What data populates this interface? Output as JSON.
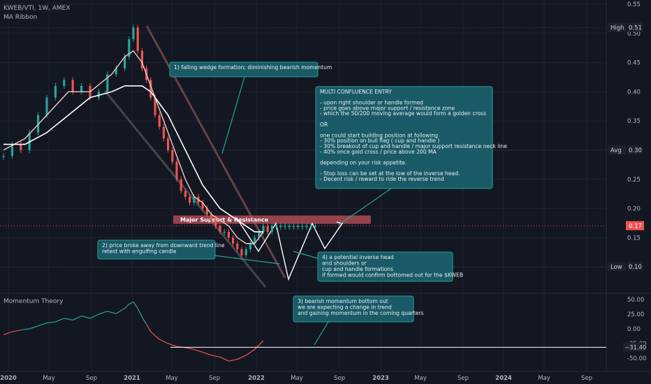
{
  "header": {
    "symbol": "KWEB/VTI, 1W, AMEX",
    "indicator1": "MA Ribbon",
    "indicator2": "Momentum Theory"
  },
  "colors": {
    "background": "#131722",
    "grid": "#1f2330",
    "text": "#b2b5be",
    "price_up": "#26a69a",
    "price_down": "#ef5350",
    "ma_fast": "#f4c7c3",
    "ma_slow": "#ffffff",
    "annotation_fill": "#1b5e6b",
    "annotation_border": "#26a69a",
    "zone": "#ad4a55",
    "momentum_up": "#26a69a",
    "momentum_down": "#ef5350"
  },
  "chart_data": [
    {
      "type": "candlestick",
      "name": "price",
      "x_ticks": [
        "2020",
        "May",
        "Sep",
        "2021",
        "May",
        "Sep",
        "2022",
        "May",
        "Sep",
        "2023",
        "May",
        "Sep",
        "2024",
        "May",
        "Sep"
      ],
      "y_ticks": [
        "0.55",
        "0.50",
        "0.45",
        "0.40",
        "0.35",
        "0.30",
        "0.25",
        "0.20",
        "0.15",
        "0.10"
      ],
      "ylim": [
        0.07,
        0.55
      ],
      "series": [
        {
          "name": "price",
          "x": [
            0,
            4,
            8,
            12,
            16,
            20,
            24,
            28,
            32,
            36,
            40,
            44,
            48,
            52,
            56,
            58,
            60,
            62,
            64,
            66,
            68,
            70,
            72,
            74,
            76,
            78,
            80,
            82,
            84,
            86,
            88,
            90,
            92,
            94,
            96,
            98,
            100,
            102,
            104,
            106,
            108,
            110,
            112,
            114,
            116,
            118,
            120,
            122,
            124,
            126,
            128,
            130,
            132,
            134,
            136,
            138,
            140,
            142,
            144
          ],
          "values": [
            0.29,
            0.31,
            0.3,
            0.33,
            0.36,
            0.39,
            0.41,
            0.42,
            0.4,
            0.41,
            0.39,
            0.4,
            0.43,
            0.44,
            0.46,
            0.49,
            0.51,
            0.47,
            0.44,
            0.42,
            0.39,
            0.36,
            0.34,
            0.32,
            0.3,
            0.28,
            0.25,
            0.23,
            0.22,
            0.21,
            0.22,
            0.21,
            0.2,
            0.19,
            0.18,
            0.17,
            0.16,
            0.16,
            0.15,
            0.14,
            0.13,
            0.12,
            0.13,
            0.14,
            0.15,
            0.16,
            0.17,
            0.16,
            0.17,
            0.17,
            0.17,
            0.17,
            0.17,
            0.17,
            0.17,
            0.17,
            0.17,
            0.17,
            0.17
          ]
        },
        {
          "name": "MA fast",
          "x": [
            0,
            10,
            20,
            30,
            40,
            50,
            56,
            60,
            64,
            68,
            72,
            76,
            80,
            84,
            88,
            92,
            96,
            100,
            104,
            108,
            112,
            116,
            120
          ],
          "values": [
            0.3,
            0.32,
            0.36,
            0.4,
            0.4,
            0.43,
            0.46,
            0.47,
            0.45,
            0.41,
            0.37,
            0.33,
            0.29,
            0.25,
            0.22,
            0.21,
            0.19,
            0.18,
            0.17,
            0.15,
            0.14,
            0.14,
            0.16
          ]
        },
        {
          "name": "MA slow",
          "x": [
            0,
            10,
            20,
            30,
            40,
            50,
            56,
            60,
            64,
            68,
            72,
            76,
            80,
            84,
            88,
            92,
            96,
            100,
            104,
            108,
            112,
            116,
            120
          ],
          "values": [
            0.31,
            0.31,
            0.33,
            0.36,
            0.39,
            0.4,
            0.41,
            0.41,
            0.41,
            0.4,
            0.38,
            0.36,
            0.33,
            0.3,
            0.27,
            0.24,
            0.22,
            0.2,
            0.19,
            0.18,
            0.17,
            0.16,
            0.16
          ]
        }
      ],
      "price_labels": {
        "high_label": "High",
        "high_value": "0.51",
        "avg_label": "Avg",
        "avg_value": "0.30",
        "low_label": "Low",
        "low_value": "0.10",
        "current_value": "0.17",
        "high": 0.51,
        "avg": 0.3,
        "low": 0.1,
        "current": 0.17
      }
    },
    {
      "type": "line",
      "name": "momentum",
      "y_ticks": [
        "50.00",
        "25.00",
        "0.00",
        "-25.00",
        "-50.00"
      ],
      "ylim": [
        -65,
        60
      ],
      "series": [
        {
          "name": "momentum",
          "x": [
            0,
            4,
            8,
            12,
            16,
            20,
            24,
            28,
            32,
            36,
            40,
            44,
            48,
            52,
            56,
            58,
            60,
            62,
            64,
            66,
            68,
            72,
            76,
            80,
            84,
            88,
            92,
            96,
            100,
            104,
            108,
            112,
            116,
            120
          ],
          "values": [
            -10,
            -5,
            -2,
            0,
            5,
            10,
            12,
            18,
            15,
            22,
            18,
            25,
            30,
            26,
            35,
            42,
            46,
            35,
            20,
            8,
            -5,
            -18,
            -25,
            -30,
            -32,
            -35,
            -40,
            -45,
            -48,
            -55,
            -52,
            -45,
            -35,
            -20
          ]
        }
      ],
      "baseline": -31.4,
      "baseline_label": "−31.40"
    }
  ],
  "zone_label": "Major Support & Resistance",
  "annotations": [
    {
      "id": "falling-wedge",
      "lines": [
        "1) falling wedge formation; diminishing bearish momentum"
      ]
    },
    {
      "id": "breakout",
      "lines": [
        "2) price broke away from downward trend line",
        "retest with engulfing candle"
      ]
    },
    {
      "id": "momentum",
      "lines": [
        "3) bearish momentum bottom out",
        "we are expecting a change in trend",
        "and gaining momentum in the coming quarters"
      ]
    },
    {
      "id": "inverse-hs",
      "lines": [
        "4) a potential inverse head",
        "and shoulders or",
        "cup and handle formations",
        "if formed would confirm bottomed out for the $KWEB"
      ]
    },
    {
      "id": "confluence",
      "lines": [
        "MULTI CONFLUENCE ENTRY",
        "",
        "- upon right shoulder or handle formed",
        "- price goes above major support / resistance zone",
        "- which the 50/200 moving average would form a golden cross",
        "",
        "OR",
        "",
        "one could start building position at following",
        "- 30% position on bull flag ( cup and handle )",
        "- 30% breakout of cup and handle / major support resistance neck line",
        "- 40% once gold cross / price above 200 MA",
        "",
        "depending on your risk appetite.",
        "",
        "- Stop loss can be set at the low of the inverse head.",
        "- Decent risk / reward to ride the reverse trend"
      ]
    }
  ]
}
